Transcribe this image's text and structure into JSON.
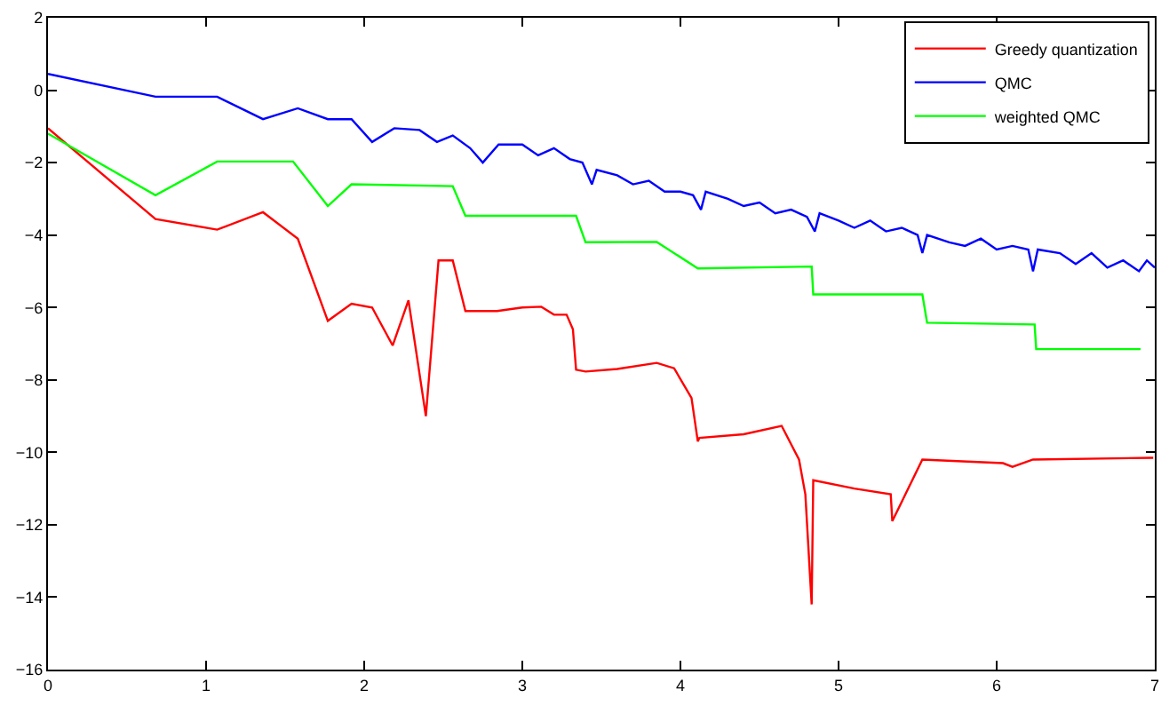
{
  "chart_data": {
    "type": "line",
    "xlim": [
      0,
      7
    ],
    "ylim": [
      -16,
      2
    ],
    "xticks": [
      0,
      1,
      2,
      3,
      4,
      5,
      6,
      7
    ],
    "yticks": [
      -16,
      -14,
      -12,
      -10,
      -8,
      -6,
      -4,
      -2,
      0,
      2
    ],
    "legend": "top right",
    "marker": "none",
    "line_style": "solid",
    "series": [
      {
        "name": "Greedy quantization",
        "color": "#ff0000",
        "x": [
          0,
          0.68,
          1.07,
          1.36,
          1.58,
          1.77,
          1.92,
          2.05,
          2.18,
          2.28,
          2.39,
          2.47,
          2.56,
          2.64,
          2.84,
          3.0,
          3.12,
          3.2,
          3.28,
          3.32,
          3.34,
          3.4,
          3.6,
          3.85,
          3.96,
          4.07,
          4.11,
          4.12,
          4.4,
          4.64,
          4.75,
          4.79,
          4.83,
          4.84,
          5.1,
          5.33,
          5.34,
          5.53,
          6.04,
          6.1,
          6.23,
          6.99
        ],
        "values": [
          -1.05,
          -3.56,
          -3.85,
          -3.37,
          -4.1,
          -6.37,
          -5.9,
          -6.0,
          -7.05,
          -5.8,
          -9.0,
          -4.7,
          -4.7,
          -6.1,
          -6.1,
          -6.0,
          -5.98,
          -6.2,
          -6.2,
          -6.6,
          -7.72,
          -7.77,
          -7.7,
          -7.53,
          -7.68,
          -8.5,
          -9.7,
          -9.6,
          -9.5,
          -9.27,
          -10.2,
          -11.16,
          -14.2,
          -10.77,
          -11.0,
          -11.16,
          -11.9,
          -10.2,
          -10.3,
          -10.4,
          -10.2,
          -10.15
        ]
      },
      {
        "name": "QMC",
        "color": "#0000ff",
        "x": [
          0,
          0.68,
          1.07,
          1.36,
          1.58,
          1.77,
          1.92,
          2.05,
          2.19,
          2.35,
          2.46,
          2.56,
          2.67,
          2.75,
          2.85,
          3.0,
          3.1,
          3.2,
          3.3,
          3.38,
          3.44,
          3.47,
          3.6,
          3.7,
          3.8,
          3.9,
          4.0,
          4.08,
          4.13,
          4.16,
          4.3,
          4.4,
          4.5,
          4.6,
          4.7,
          4.8,
          4.85,
          4.88,
          5.0,
          5.1,
          5.2,
          5.3,
          5.4,
          5.5,
          5.53,
          5.56,
          5.7,
          5.8,
          5.9,
          6.0,
          6.1,
          6.2,
          6.23,
          6.26,
          6.4,
          6.5,
          6.6,
          6.7,
          6.8,
          6.9,
          6.95,
          7.0
        ],
        "values": [
          0.45,
          -0.18,
          -0.18,
          -0.8,
          -0.5,
          -0.8,
          -0.8,
          -1.43,
          -1.05,
          -1.1,
          -1.43,
          -1.25,
          -1.6,
          -2.0,
          -1.5,
          -1.5,
          -1.8,
          -1.6,
          -1.9,
          -2.0,
          -2.6,
          -2.2,
          -2.35,
          -2.6,
          -2.5,
          -2.8,
          -2.8,
          -2.9,
          -3.3,
          -2.8,
          -3.0,
          -3.2,
          -3.1,
          -3.4,
          -3.3,
          -3.5,
          -3.9,
          -3.4,
          -3.6,
          -3.8,
          -3.6,
          -3.9,
          -3.8,
          -4.0,
          -4.5,
          -4.0,
          -4.2,
          -4.3,
          -4.1,
          -4.4,
          -4.3,
          -4.4,
          -5.0,
          -4.4,
          -4.5,
          -4.8,
          -4.5,
          -4.9,
          -4.7,
          -5.0,
          -4.7,
          -4.9
        ]
      },
      {
        "name": "weighted QMC",
        "color": "#00ff00",
        "x": [
          0,
          0.68,
          1.07,
          1.55,
          1.77,
          1.92,
          2.56,
          2.64,
          3.34,
          3.4,
          3.85,
          4.11,
          4.83,
          4.84,
          5.53,
          5.56,
          6.24,
          6.25,
          6.91
        ],
        "values": [
          -1.2,
          -2.9,
          -1.97,
          -1.97,
          -3.2,
          -2.6,
          -2.65,
          -3.47,
          -3.47,
          -4.2,
          -4.19,
          -4.92,
          -4.87,
          -5.64,
          -5.64,
          -6.42,
          -6.47,
          -7.15,
          -7.15
        ]
      }
    ]
  }
}
